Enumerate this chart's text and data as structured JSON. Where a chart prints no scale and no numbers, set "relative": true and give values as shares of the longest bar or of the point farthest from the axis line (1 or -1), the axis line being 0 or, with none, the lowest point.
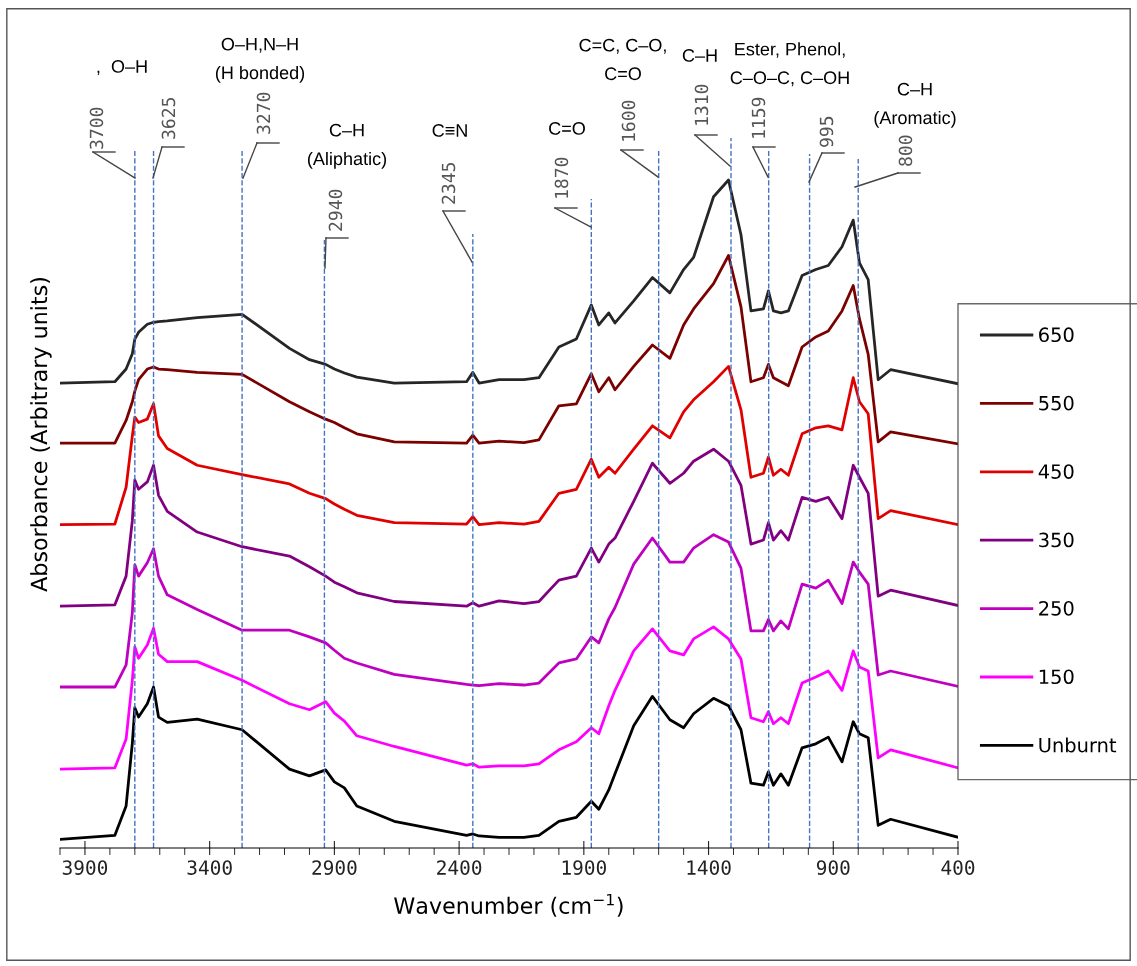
{
  "chart_data": {
    "type": "line",
    "xlabel": "Wavenumber (cm$^{−1}$)",
    "ylabel": "Absorbance (Arbitrary units)",
    "xlim": [
      4000,
      400
    ],
    "xticks": [
      3900,
      3400,
      2900,
      2400,
      1900,
      1400,
      900,
      400
    ],
    "relative": true,
    "legend": "right",
    "line_style": "solid",
    "x": [
      4000,
      3780,
      3735,
      3710,
      3700,
      3685,
      3650,
      3625,
      3605,
      3570,
      3450,
      3270,
      3080,
      3000,
      2935,
      2900,
      2860,
      2810,
      2660,
      2370,
      2345,
      2320,
      2240,
      2140,
      2080,
      2000,
      1930,
      1870,
      1840,
      1800,
      1775,
      1700,
      1625,
      1555,
      1500,
      1460,
      1380,
      1320,
      1270,
      1230,
      1180,
      1160,
      1140,
      1110,
      1080,
      1025,
      970,
      920,
      865,
      820,
      795,
      760,
      720,
      670,
      400
    ],
    "series": [
      {
        "name": "650",
        "color": "#262626",
        "values": [
          0.696,
          0.698,
          0.717,
          0.74,
          0.762,
          0.772,
          0.784,
          0.787,
          0.788,
          0.789,
          0.794,
          0.799,
          0.748,
          0.731,
          0.724,
          0.717,
          0.711,
          0.705,
          0.696,
          0.698,
          0.712,
          0.696,
          0.701,
          0.701,
          0.704,
          0.75,
          0.762,
          0.813,
          0.783,
          0.801,
          0.786,
          0.819,
          0.854,
          0.831,
          0.866,
          0.884,
          0.975,
          1.0,
          0.918,
          0.804,
          0.807,
          0.834,
          0.804,
          0.801,
          0.804,
          0.857,
          0.866,
          0.872,
          0.9,
          0.94,
          0.876,
          0.851,
          0.701,
          0.716,
          0.695
        ]
      },
      {
        "name": "550",
        "color": "#7b0000",
        "values": [
          0.606,
          0.606,
          0.64,
          0.668,
          0.684,
          0.701,
          0.717,
          0.72,
          0.717,
          0.716,
          0.712,
          0.709,
          0.668,
          0.653,
          0.642,
          0.637,
          0.629,
          0.62,
          0.608,
          0.606,
          0.618,
          0.606,
          0.609,
          0.607,
          0.611,
          0.662,
          0.665,
          0.71,
          0.683,
          0.704,
          0.686,
          0.721,
          0.753,
          0.733,
          0.783,
          0.807,
          0.845,
          0.887,
          0.81,
          0.698,
          0.704,
          0.724,
          0.704,
          0.698,
          0.692,
          0.75,
          0.765,
          0.774,
          0.804,
          0.842,
          0.792,
          0.739,
          0.608,
          0.623,
          0.605
        ]
      },
      {
        "name": "450",
        "color": "#e00000",
        "values": [
          0.484,
          0.485,
          0.54,
          0.617,
          0.645,
          0.637,
          0.642,
          0.665,
          0.617,
          0.598,
          0.573,
          0.559,
          0.545,
          0.531,
          0.523,
          0.515,
          0.507,
          0.498,
          0.487,
          0.485,
          0.496,
          0.484,
          0.487,
          0.485,
          0.489,
          0.531,
          0.537,
          0.582,
          0.555,
          0.57,
          0.561,
          0.597,
          0.632,
          0.614,
          0.653,
          0.671,
          0.698,
          0.721,
          0.656,
          0.555,
          0.561,
          0.585,
          0.558,
          0.567,
          0.558,
          0.62,
          0.629,
          0.632,
          0.626,
          0.704,
          0.668,
          0.65,
          0.493,
          0.505,
          0.484
        ]
      },
      {
        "name": "350",
        "color": "#800080",
        "values": [
          0.362,
          0.364,
          0.407,
          0.49,
          0.551,
          0.537,
          0.548,
          0.573,
          0.528,
          0.504,
          0.473,
          0.451,
          0.437,
          0.421,
          0.407,
          0.398,
          0.391,
          0.382,
          0.369,
          0.362,
          0.367,
          0.362,
          0.37,
          0.366,
          0.369,
          0.401,
          0.407,
          0.449,
          0.428,
          0.455,
          0.464,
          0.519,
          0.576,
          0.546,
          0.561,
          0.579,
          0.597,
          0.579,
          0.543,
          0.455,
          0.461,
          0.487,
          0.461,
          0.475,
          0.461,
          0.525,
          0.519,
          0.525,
          0.493,
          0.573,
          0.555,
          0.531,
          0.377,
          0.386,
          0.363
        ]
      },
      {
        "name": "250",
        "color": "#c000c0",
        "values": [
          0.241,
          0.241,
          0.274,
          0.352,
          0.424,
          0.407,
          0.427,
          0.448,
          0.407,
          0.379,
          0.357,
          0.326,
          0.326,
          0.316,
          0.307,
          0.296,
          0.284,
          0.277,
          0.26,
          0.245,
          0.244,
          0.243,
          0.246,
          0.244,
          0.247,
          0.277,
          0.283,
          0.316,
          0.307,
          0.343,
          0.36,
          0.425,
          0.464,
          0.428,
          0.428,
          0.449,
          0.469,
          0.458,
          0.419,
          0.325,
          0.325,
          0.342,
          0.325,
          0.34,
          0.328,
          0.395,
          0.389,
          0.401,
          0.366,
          0.428,
          0.413,
          0.395,
          0.259,
          0.265,
          0.242
        ]
      },
      {
        "name": "150",
        "color": "#ff00ff",
        "values": [
          0.118,
          0.12,
          0.163,
          0.251,
          0.301,
          0.284,
          0.304,
          0.329,
          0.29,
          0.279,
          0.279,
          0.251,
          0.216,
          0.207,
          0.219,
          0.202,
          0.19,
          0.168,
          0.152,
          0.124,
          0.126,
          0.121,
          0.123,
          0.123,
          0.126,
          0.147,
          0.159,
          0.18,
          0.171,
          0.213,
          0.236,
          0.295,
          0.328,
          0.295,
          0.289,
          0.313,
          0.331,
          0.313,
          0.283,
          0.195,
          0.189,
          0.204,
          0.186,
          0.195,
          0.186,
          0.247,
          0.256,
          0.265,
          0.236,
          0.295,
          0.271,
          0.265,
          0.135,
          0.147,
          0.12
        ]
      },
      {
        "name": "Unburnt",
        "color": "#000000",
        "values": [
          0.013,
          0.019,
          0.063,
          0.157,
          0.21,
          0.196,
          0.216,
          0.241,
          0.196,
          0.188,
          0.193,
          0.177,
          0.118,
          0.108,
          0.117,
          0.099,
          0.09,
          0.063,
          0.04,
          0.019,
          0.021,
          0.018,
          0.016,
          0.016,
          0.019,
          0.04,
          0.046,
          0.07,
          0.058,
          0.087,
          0.111,
          0.183,
          0.227,
          0.192,
          0.18,
          0.201,
          0.224,
          0.213,
          0.177,
          0.097,
          0.094,
          0.114,
          0.094,
          0.111,
          0.094,
          0.15,
          0.156,
          0.166,
          0.129,
          0.189,
          0.171,
          0.165,
          0.034,
          0.043,
          0.016
        ]
      }
    ],
    "ref_lines": [
      {
        "axis": "x",
        "value": 3700,
        "label": "3700",
        "color": "#4472c4",
        "line_style": "dashed"
      },
      {
        "axis": "x",
        "value": 3625,
        "label": "3625",
        "color": "#4472c4",
        "line_style": "dashed"
      },
      {
        "axis": "x",
        "value": 3270,
        "label": "3270",
        "color": "#4472c4",
        "line_style": "dashed"
      },
      {
        "axis": "x",
        "value": 2940,
        "label": "2940",
        "color": "#4472c4",
        "line_style": "dashed"
      },
      {
        "axis": "x",
        "value": 2345,
        "label": "2345",
        "color": "#4472c4",
        "line_style": "dashed"
      },
      {
        "axis": "x",
        "value": 1870,
        "label": "1870",
        "color": "#4472c4",
        "line_style": "dashed"
      },
      {
        "axis": "x",
        "value": 1600,
        "label": "1600",
        "color": "#4472c4",
        "line_style": "dashed"
      },
      {
        "axis": "x",
        "value": 1310,
        "label": "1310",
        "color": "#4472c4",
        "line_style": "dashed"
      },
      {
        "axis": "x",
        "value": 1159,
        "label": "1159",
        "color": "#4472c4",
        "line_style": "dashed"
      },
      {
        "axis": "x",
        "value": 995,
        "label": "995",
        "color": "#4472c4",
        "line_style": "dashed"
      },
      {
        "axis": "x",
        "value": 800,
        "label": "800",
        "color": "#4472c4",
        "line_style": "dashed"
      }
    ],
    "annotations": [
      ",  O–H",
      "O–H,N–H\n(H bonded)",
      "C–H\n(Aliphatic)",
      "C≡N",
      "C=O",
      "C=C, C–O,\nC=O",
      "C–H",
      "Ester, Phenol,\nC–O–C, C–OH",
      "C–H\n(Aromatic)"
    ]
  }
}
